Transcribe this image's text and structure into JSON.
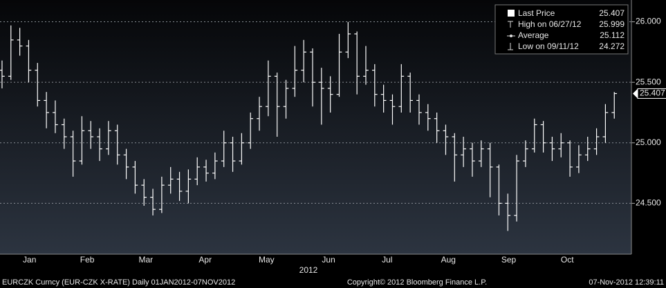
{
  "chart_data": {
    "type": "ohlc",
    "color": "#ffffff",
    "grid": true,
    "legend_position": "top-right",
    "open": [
      25.6,
      25.55,
      25.85,
      25.8,
      25.6,
      25.35,
      25.25,
      25.15,
      25.05,
      24.85,
      25.1,
      25.05,
      24.95,
      25.1,
      24.9,
      24.8,
      24.65,
      24.55,
      24.45,
      24.65,
      24.7,
      24.6,
      24.7,
      24.8,
      24.75,
      24.85,
      25.0,
      24.85,
      25.0,
      25.2,
      25.3,
      25.55,
      25.3,
      25.45,
      25.6,
      25.75,
      25.5,
      25.45,
      25.4,
      25.75,
      25.9,
      25.55,
      25.6,
      25.4,
      25.35,
      25.3,
      25.55,
      25.35,
      25.25,
      25.2,
      25.1,
      25.05,
      24.9,
      24.95,
      24.85,
      24.95,
      24.8,
      24.5,
      24.4,
      24.85,
      24.95,
      25.15,
      25.0,
      24.95,
      25.0,
      24.8,
      24.9,
      24.95,
      25.05,
      25.25
    ],
    "high": [
      25.68,
      25.97,
      25.95,
      25.85,
      25.66,
      25.42,
      25.35,
      25.2,
      25.1,
      25.22,
      25.18,
      25.12,
      25.18,
      25.15,
      24.95,
      24.85,
      24.7,
      24.62,
      24.72,
      24.8,
      24.76,
      24.78,
      24.88,
      24.86,
      24.92,
      25.1,
      25.05,
      25.08,
      25.25,
      25.38,
      25.68,
      25.58,
      25.52,
      25.8,
      25.85,
      25.78,
      25.62,
      25.55,
      25.9,
      25.999,
      25.92,
      25.8,
      25.65,
      25.48,
      25.4,
      25.65,
      25.58,
      25.4,
      25.32,
      25.25,
      25.15,
      25.08,
      25.05,
      25.0,
      25.02,
      25.0,
      24.82,
      24.58,
      24.9,
      25.02,
      25.2,
      25.18,
      25.05,
      25.08,
      25.02,
      24.98,
      25.05,
      25.12,
      25.32,
      25.42
    ],
    "low": [
      25.45,
      25.52,
      25.72,
      25.5,
      25.3,
      25.12,
      25.08,
      24.95,
      24.72,
      24.82,
      24.95,
      24.85,
      24.9,
      24.82,
      24.7,
      24.58,
      24.48,
      24.4,
      24.42,
      24.58,
      24.52,
      24.5,
      24.65,
      24.68,
      24.7,
      24.8,
      24.76,
      24.82,
      24.95,
      25.1,
      25.22,
      25.05,
      25.2,
      25.38,
      25.5,
      25.3,
      25.15,
      25.25,
      25.38,
      25.7,
      25.4,
      25.48,
      25.3,
      25.25,
      25.15,
      25.25,
      25.25,
      25.15,
      25.1,
      25.0,
      24.9,
      24.68,
      24.8,
      24.72,
      24.8,
      24.55,
      24.4,
      24.272,
      24.35,
      24.8,
      24.92,
      24.92,
      24.85,
      24.88,
      24.72,
      24.75,
      24.85,
      24.9,
      25.0,
      25.2
    ],
    "close": [
      25.55,
      25.85,
      25.8,
      25.6,
      25.35,
      25.25,
      25.15,
      25.05,
      24.85,
      25.1,
      25.05,
      24.95,
      25.1,
      24.9,
      24.8,
      24.65,
      24.55,
      24.45,
      24.65,
      24.7,
      24.6,
      24.7,
      24.8,
      24.75,
      24.85,
      25.0,
      24.85,
      25.0,
      25.2,
      25.3,
      25.55,
      25.3,
      25.45,
      25.6,
      25.75,
      25.5,
      25.45,
      25.4,
      25.75,
      25.9,
      25.55,
      25.6,
      25.4,
      25.35,
      25.3,
      25.55,
      25.35,
      25.25,
      25.2,
      25.1,
      25.05,
      24.9,
      24.95,
      24.85,
      24.95,
      24.8,
      24.5,
      24.4,
      24.85,
      24.95,
      25.15,
      25.0,
      24.95,
      25.0,
      24.8,
      24.9,
      24.95,
      25.05,
      25.25,
      25.407
    ],
    "xlim": [
      -0.23,
      70.93
    ],
    "xticks": [
      {
        "value": 3.1,
        "label": "Jan"
      },
      {
        "value": 9.6,
        "label": "Feb"
      },
      {
        "value": 16.2,
        "label": "Mar"
      },
      {
        "value": 22.9,
        "label": "Apr"
      },
      {
        "value": 29.8,
        "label": "May"
      },
      {
        "value": 36.8,
        "label": "Jun"
      },
      {
        "value": 43.4,
        "label": "Jul"
      },
      {
        "value": 50.3,
        "label": "Aug"
      },
      {
        "value": 57.1,
        "label": "Sep"
      },
      {
        "value": 63.7,
        "label": "Oct"
      }
    ],
    "x_year_label": "2012",
    "ylim": [
      24.08,
      26.18
    ],
    "yticks": [
      {
        "value": 24.5,
        "label": "24.500"
      },
      {
        "value": 25,
        "label": "25.000"
      },
      {
        "value": 25.5,
        "label": "25.500"
      },
      {
        "value": 26,
        "label": "26.000"
      }
    ],
    "legend": [
      {
        "name": "Last Price",
        "value": 25.407
      },
      {
        "name": "High on 06/27/12",
        "value": 25.999
      },
      {
        "name": "Average",
        "value": 25.112
      },
      {
        "name": "Low on 09/11/12",
        "value": 24.272
      }
    ],
    "footer": {
      "left": "EURCZK Curncy (EUR-CZK X-RATE)  Daily 01JAN2012-07NOV2012",
      "center": "Copyright© 2012 Bloomberg Finance L.P.",
      "right": "07-Nov-2012 12:39:11"
    }
  }
}
